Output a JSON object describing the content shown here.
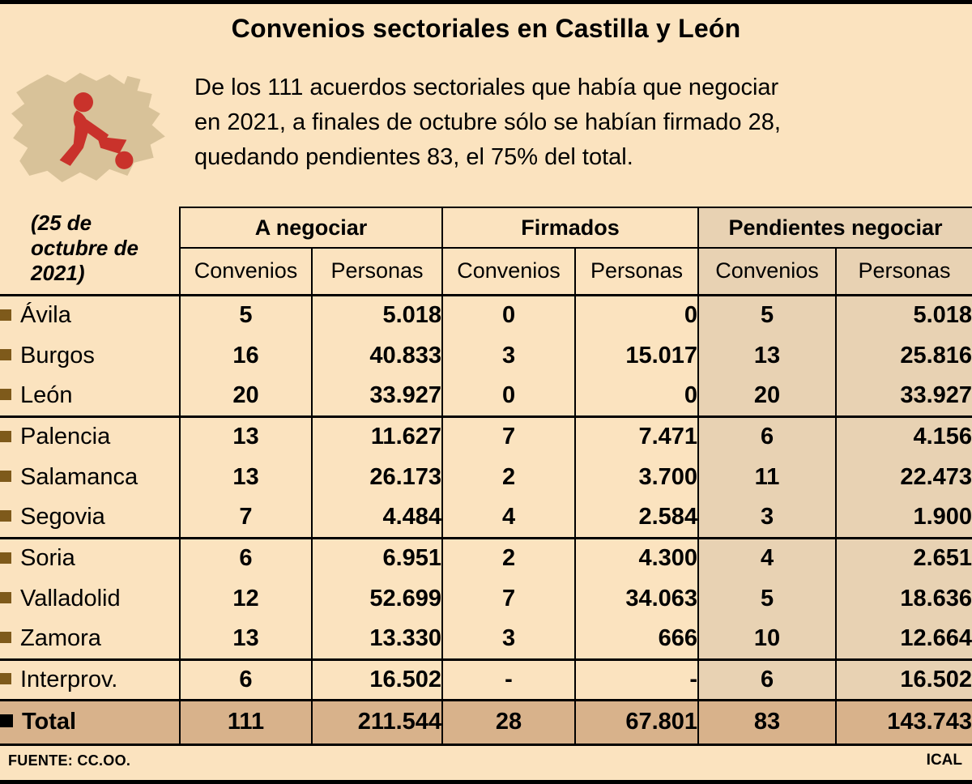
{
  "page": {
    "title": "Convenios sectoriales en Castilla y León",
    "intro_lines": [
      "De los 111 acuerdos sectoriales que había que negociar",
      "en 2021, a finales de octubre sólo se habían firmado 28,",
      "quedando pendientes 83, el 75% del total."
    ],
    "date_note": "(25 de octubre de 2021)",
    "source": "FUENTE: CC.OO.",
    "credit": "ICAL"
  },
  "chart_data": {
    "type": "table",
    "title": "Convenios sectoriales en Castilla y León",
    "column_groups": [
      "A negociar",
      "Firmados",
      "Pendientes negociar"
    ],
    "sub_columns": [
      "Convenios",
      "Personas"
    ],
    "rows": [
      {
        "label": "Ávila",
        "values": [
          "5",
          "5.018",
          "0",
          "0",
          "5",
          "5.018"
        ]
      },
      {
        "label": "Burgos",
        "values": [
          "16",
          "40.833",
          "3",
          "15.017",
          "13",
          "25.816"
        ]
      },
      {
        "label": "León",
        "values": [
          "20",
          "33.927",
          "0",
          "0",
          "20",
          "33.927"
        ]
      },
      {
        "label": "Palencia",
        "separator_above": true,
        "values": [
          "13",
          "11.627",
          "7",
          "7.471",
          "6",
          "4.156"
        ]
      },
      {
        "label": "Salamanca",
        "values": [
          "13",
          "26.173",
          "2",
          "3.700",
          "11",
          "22.473"
        ]
      },
      {
        "label": "Segovia",
        "values": [
          "7",
          "4.484",
          "4",
          "2.584",
          "3",
          "1.900"
        ]
      },
      {
        "label": "Soria",
        "separator_above": true,
        "values": [
          "6",
          "6.951",
          "2",
          "4.300",
          "4",
          "2.651"
        ]
      },
      {
        "label": "Valladolid",
        "values": [
          "12",
          "52.699",
          "7",
          "34.063",
          "5",
          "18.636"
        ]
      },
      {
        "label": "Zamora",
        "values": [
          "13",
          "13.330",
          "3",
          "666",
          "10",
          "12.664"
        ]
      },
      {
        "label": "Interprov.",
        "separator_above": true,
        "values": [
          "6",
          "16.502",
          "-",
          "-",
          "6",
          "16.502"
        ]
      },
      {
        "label": "Total",
        "is_total": true,
        "values": [
          "111",
          "211.544",
          "28",
          "67.801",
          "83",
          "143.743"
        ]
      }
    ]
  },
  "colors": {
    "bg": "#fbe3bf",
    "shade": "#e8d2b3",
    "total_bg": "#d8b28b",
    "bullet": "#7e5a1b",
    "total_bullet": "#000000",
    "accent_red": "#c9322b",
    "map_tan": "#d8c299"
  }
}
